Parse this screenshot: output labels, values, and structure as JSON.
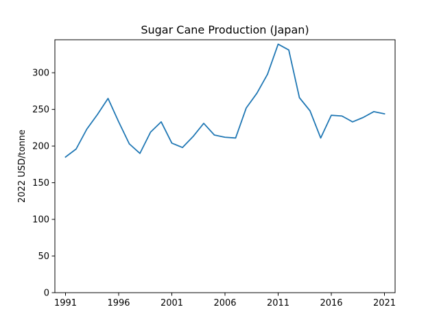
{
  "chart_data": {
    "type": "line",
    "title": "Sugar Cane Production (Japan)",
    "xlabel": "",
    "ylabel": "2022 USD/tonne",
    "xlim": [
      1990,
      2022
    ],
    "ylim": [
      0,
      345
    ],
    "xticks": [
      1991,
      1996,
      2001,
      2006,
      2011,
      2016,
      2021
    ],
    "yticks": [
      0,
      50,
      100,
      150,
      200,
      250,
      300
    ],
    "grid": false,
    "legend": "none",
    "series": [
      {
        "color": "#1f77b4",
        "x": [
          1991,
          1992,
          1993,
          1994,
          1995,
          1996,
          1997,
          1998,
          1999,
          2000,
          2001,
          2002,
          2003,
          2004,
          2005,
          2006,
          2007,
          2008,
          2009,
          2010,
          2011,
          2012,
          2013,
          2014,
          2015,
          2016,
          2017,
          2018,
          2019,
          2020,
          2021
        ],
        "y": [
          185,
          196,
          223,
          243,
          265,
          233,
          203,
          190,
          219,
          233,
          204,
          198,
          213,
          231,
          215,
          212,
          211,
          252,
          272,
          298,
          339,
          331,
          266,
          248,
          211,
          242,
          241,
          233,
          239,
          247,
          244
        ]
      }
    ]
  }
}
